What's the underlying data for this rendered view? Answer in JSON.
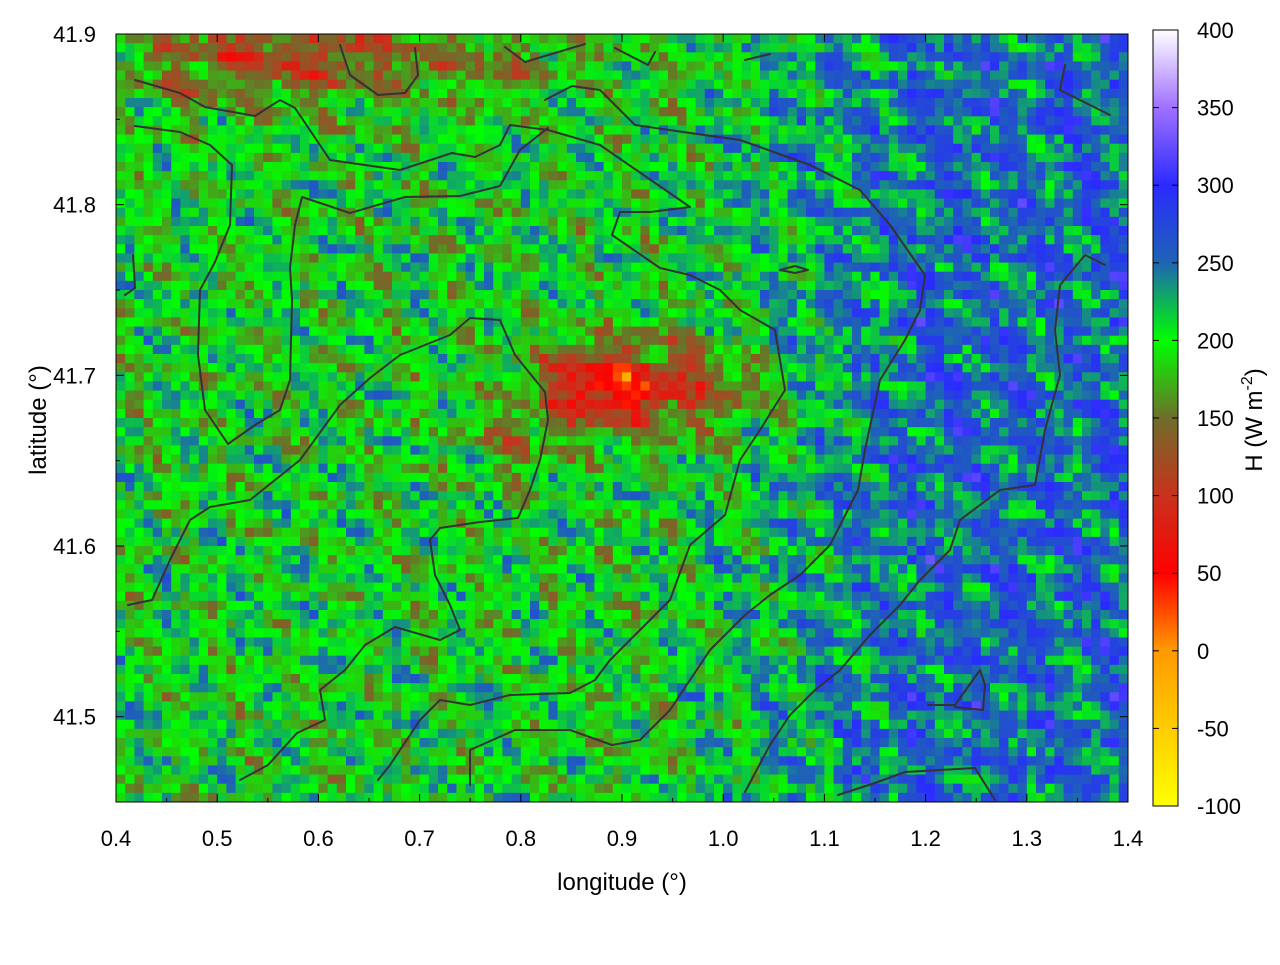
{
  "chart_data": {
    "type": "heatmap",
    "title": "",
    "xlabel": "longitude (°)",
    "ylabel": "latitude (°)",
    "colorbar_label": "H (W m",
    "colorbar_label_sup": "-2",
    "colorbar_label_close": ")",
    "xlim": [
      0.4,
      1.4
    ],
    "ylim": [
      41.45,
      41.9
    ],
    "xticks": [
      "0.4",
      "0.5",
      "0.6",
      "0.7",
      "0.8",
      "0.9",
      "1.0",
      "1.1",
      "1.2",
      "1.3",
      "1.4"
    ],
    "yticks": [
      "41.5",
      "41.6",
      "41.7",
      "41.8",
      "41.9"
    ],
    "colorbar_ticks": [
      "-100",
      "-50",
      "0",
      "50",
      "100",
      "150",
      "200",
      "250",
      "300",
      "350",
      "400"
    ],
    "clim": [
      -100,
      400
    ],
    "colormap": [
      {
        "value": -100,
        "color": "#ffff00"
      },
      {
        "value": 0,
        "color": "#ff9a00"
      },
      {
        "value": 50,
        "color": "#ff0000"
      },
      {
        "value": 100,
        "color": "#c8321e"
      },
      {
        "value": 150,
        "color": "#6e6e2a"
      },
      {
        "value": 200,
        "color": "#00ff00"
      },
      {
        "value": 250,
        "color": "#1e64b4"
      },
      {
        "value": 300,
        "color": "#2a2aff"
      },
      {
        "value": 350,
        "color": "#a070ff"
      },
      {
        "value": 400,
        "color": "#ffffff"
      }
    ],
    "grid": false,
    "contour_color": "#333333",
    "regions": [
      {
        "name": "red hotspot",
        "center": [
          0.88,
          41.69
        ],
        "value": 60
      },
      {
        "name": "north strip",
        "center": [
          0.65,
          41.88
        ],
        "value": 130
      },
      {
        "name": "east zone",
        "center": [
          1.22,
          41.65
        ],
        "value": 250
      }
    ]
  }
}
